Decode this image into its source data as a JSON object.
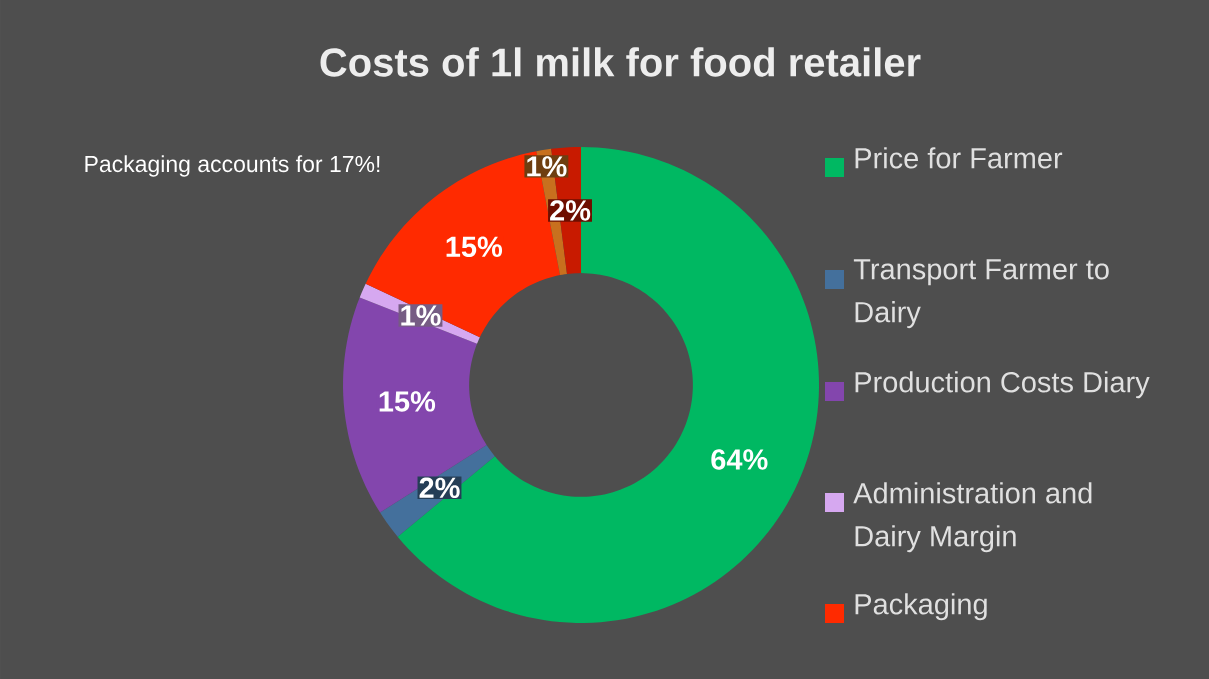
{
  "chart_data": {
    "type": "donut",
    "title": "Costs of 1l milk for food retailer",
    "categories": [
      "Price for Farmer",
      "Transport Farmer to Dairy",
      "Production Costs Diary",
      "Administration and Dairy Margin",
      "Packaging",
      null,
      null
    ],
    "values": [
      64,
      2,
      15,
      1,
      15,
      1,
      2
    ],
    "value_labels": [
      "64%",
      "2%",
      "15%",
      "1%",
      "15%",
      "1%",
      "2%"
    ],
    "colors": [
      "#00b862",
      "#44709c",
      "#8346ad",
      "#d6a8f0",
      "#ff2a00",
      "#c8701e",
      "#c81a00"
    ],
    "legend": "right",
    "annotations": [
      "Packaging accounts for 17%!"
    ]
  }
}
